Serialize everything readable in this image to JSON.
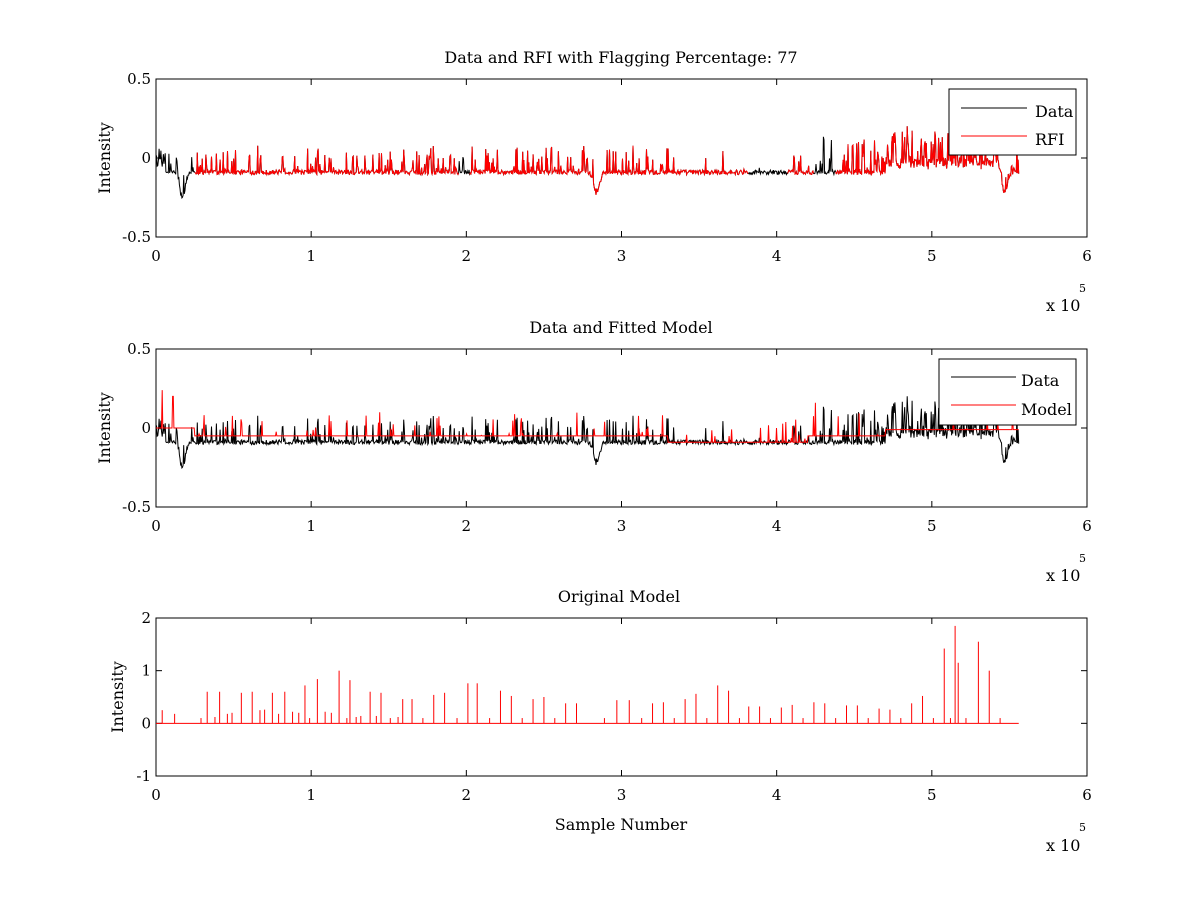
{
  "chart_data": [
    {
      "type": "line",
      "title": "Data and RFI with Flagging Percentage: 77",
      "xlabel": "",
      "ylabel": "Intensity",
      "xlim": [
        0,
        600000
      ],
      "ylim": [
        -0.5,
        0.5
      ],
      "x_scale_label": "x 10",
      "x_scale_exp": "5",
      "x_ticks": [
        0,
        100000,
        200000,
        300000,
        400000,
        500000,
        600000
      ],
      "x_tick_labels": [
        "0",
        "1",
        "2",
        "3",
        "4",
        "5",
        "6"
      ],
      "y_ticks": [
        -0.5,
        0,
        0.5
      ],
      "y_tick_labels": [
        "-0.5",
        "0",
        "0.5"
      ],
      "grid": false,
      "legend_position": "top-right",
      "series": [
        {
          "name": "Data",
          "color": "#000000"
        },
        {
          "name": "RFI",
          "color": "#ff0000"
        }
      ],
      "x_extent": [
        0,
        556000
      ],
      "baseline": -0.09,
      "dips": [
        {
          "x": 17000,
          "depth": 0.24
        },
        {
          "x": 284000,
          "depth": 0.21
        },
        {
          "x": 547000,
          "depth": 0.19
        }
      ],
      "rfi_segments": [
        [
          25000,
          195000
        ],
        [
          202000,
          382000
        ],
        [
          407000,
          424000
        ],
        [
          438000,
          556000
        ]
      ],
      "quiet_span": [
        340000,
        410000
      ]
    },
    {
      "type": "line",
      "title": "Data and Fitted Model",
      "xlabel": "",
      "ylabel": "Intensity",
      "xlim": [
        0,
        600000
      ],
      "ylim": [
        -0.5,
        0.5
      ],
      "x_scale_label": "x 10",
      "x_scale_exp": "5",
      "x_ticks": [
        0,
        100000,
        200000,
        300000,
        400000,
        500000,
        600000
      ],
      "x_tick_labels": [
        "0",
        "1",
        "2",
        "3",
        "4",
        "5",
        "6"
      ],
      "y_ticks": [
        -0.5,
        0,
        0.5
      ],
      "y_tick_labels": [
        "-0.5",
        "0",
        "0.5"
      ],
      "grid": false,
      "legend_position": "top-right",
      "series": [
        {
          "name": "Data",
          "color": "#000000"
        },
        {
          "name": "Model",
          "color": "#ff0000"
        }
      ],
      "x_extent": [
        0,
        556000
      ],
      "baseline": -0.09,
      "dips": [
        {
          "x": 17000,
          "depth": 0.24
        },
        {
          "x": 284000,
          "depth": 0.21
        },
        {
          "x": 547000,
          "depth": 0.19
        }
      ],
      "model_level_early": 0.0,
      "model_level_main": -0.05,
      "model_step_x": 25000,
      "quiet_span": [
        340000,
        410000
      ]
    },
    {
      "type": "line",
      "title": "Original Model",
      "xlabel": "Sample Number",
      "ylabel": "Intensity",
      "xlim": [
        0,
        600000
      ],
      "ylim": [
        -1,
        2
      ],
      "x_scale_label": "x 10",
      "x_scale_exp": "5",
      "x_ticks": [
        0,
        100000,
        200000,
        300000,
        400000,
        500000,
        600000
      ],
      "x_tick_labels": [
        "0",
        "1",
        "2",
        "3",
        "4",
        "5",
        "6"
      ],
      "y_ticks": [
        -1,
        0,
        1,
        2
      ],
      "y_tick_labels": [
        "-1",
        "0",
        "1",
        "2"
      ],
      "grid": false,
      "series": [
        {
          "color": "#ff0000"
        }
      ],
      "x_extent": [
        0,
        556000
      ],
      "spikes": [
        {
          "x": 4000,
          "y": 0.25
        },
        {
          "x": 12000,
          "y": 0.18
        },
        {
          "x": 29000,
          "y": 0.1
        },
        {
          "x": 33000,
          "y": 0.6
        },
        {
          "x": 38000,
          "y": 0.12
        },
        {
          "x": 41000,
          "y": 0.6
        },
        {
          "x": 46000,
          "y": 0.18
        },
        {
          "x": 49000,
          "y": 0.2
        },
        {
          "x": 55000,
          "y": 0.58
        },
        {
          "x": 62000,
          "y": 0.6
        },
        {
          "x": 67000,
          "y": 0.25
        },
        {
          "x": 70000,
          "y": 0.26
        },
        {
          "x": 75000,
          "y": 0.58
        },
        {
          "x": 79000,
          "y": 0.18
        },
        {
          "x": 83000,
          "y": 0.6
        },
        {
          "x": 88000,
          "y": 0.22
        },
        {
          "x": 92000,
          "y": 0.2
        },
        {
          "x": 96000,
          "y": 0.72
        },
        {
          "x": 99000,
          "y": 0.1
        },
        {
          "x": 104000,
          "y": 0.84
        },
        {
          "x": 109000,
          "y": 0.22
        },
        {
          "x": 113000,
          "y": 0.2
        },
        {
          "x": 118000,
          "y": 1.0
        },
        {
          "x": 123000,
          "y": 0.1
        },
        {
          "x": 125000,
          "y": 0.82
        },
        {
          "x": 129000,
          "y": 0.12
        },
        {
          "x": 132000,
          "y": 0.14
        },
        {
          "x": 138000,
          "y": 0.6
        },
        {
          "x": 142000,
          "y": 0.14
        },
        {
          "x": 145000,
          "y": 0.58
        },
        {
          "x": 151000,
          "y": 0.1
        },
        {
          "x": 156000,
          "y": 0.12
        },
        {
          "x": 159000,
          "y": 0.46
        },
        {
          "x": 165000,
          "y": 0.46
        },
        {
          "x": 172000,
          "y": 0.1
        },
        {
          "x": 179000,
          "y": 0.54
        },
        {
          "x": 186000,
          "y": 0.58
        },
        {
          "x": 194000,
          "y": 0.1
        },
        {
          "x": 201000,
          "y": 0.76
        },
        {
          "x": 207000,
          "y": 0.76
        },
        {
          "x": 215000,
          "y": 0.1
        },
        {
          "x": 222000,
          "y": 0.62
        },
        {
          "x": 229000,
          "y": 0.52
        },
        {
          "x": 236000,
          "y": 0.1
        },
        {
          "x": 243000,
          "y": 0.46
        },
        {
          "x": 250000,
          "y": 0.5
        },
        {
          "x": 257000,
          "y": 0.1
        },
        {
          "x": 264000,
          "y": 0.38
        },
        {
          "x": 271000,
          "y": 0.38
        },
        {
          "x": 289000,
          "y": 0.1
        },
        {
          "x": 297000,
          "y": 0.44
        },
        {
          "x": 305000,
          "y": 0.44
        },
        {
          "x": 313000,
          "y": 0.1
        },
        {
          "x": 320000,
          "y": 0.38
        },
        {
          "x": 327000,
          "y": 0.4
        },
        {
          "x": 334000,
          "y": 0.1
        },
        {
          "x": 341000,
          "y": 0.46
        },
        {
          "x": 348000,
          "y": 0.56
        },
        {
          "x": 355000,
          "y": 0.1
        },
        {
          "x": 362000,
          "y": 0.72
        },
        {
          "x": 369000,
          "y": 0.62
        },
        {
          "x": 376000,
          "y": 0.1
        },
        {
          "x": 382000,
          "y": 0.32
        },
        {
          "x": 389000,
          "y": 0.32
        },
        {
          "x": 396000,
          "y": 0.1
        },
        {
          "x": 403000,
          "y": 0.3
        },
        {
          "x": 410000,
          "y": 0.35
        },
        {
          "x": 417000,
          "y": 0.1
        },
        {
          "x": 424000,
          "y": 0.4
        },
        {
          "x": 431000,
          "y": 0.38
        },
        {
          "x": 438000,
          "y": 0.1
        },
        {
          "x": 445000,
          "y": 0.34
        },
        {
          "x": 452000,
          "y": 0.34
        },
        {
          "x": 459000,
          "y": 0.1
        },
        {
          "x": 466000,
          "y": 0.28
        },
        {
          "x": 473000,
          "y": 0.26
        },
        {
          "x": 480000,
          "y": 0.1
        },
        {
          "x": 487000,
          "y": 0.38
        },
        {
          "x": 494000,
          "y": 0.52
        },
        {
          "x": 501000,
          "y": 0.1
        },
        {
          "x": 508000,
          "y": 1.42
        },
        {
          "x": 512000,
          "y": 0.1
        },
        {
          "x": 515000,
          "y": 1.85
        },
        {
          "x": 517000,
          "y": 1.15
        },
        {
          "x": 522000,
          "y": 0.1
        },
        {
          "x": 530000,
          "y": 1.55
        },
        {
          "x": 537000,
          "y": 1.0
        },
        {
          "x": 544000,
          "y": 0.1
        }
      ]
    }
  ]
}
